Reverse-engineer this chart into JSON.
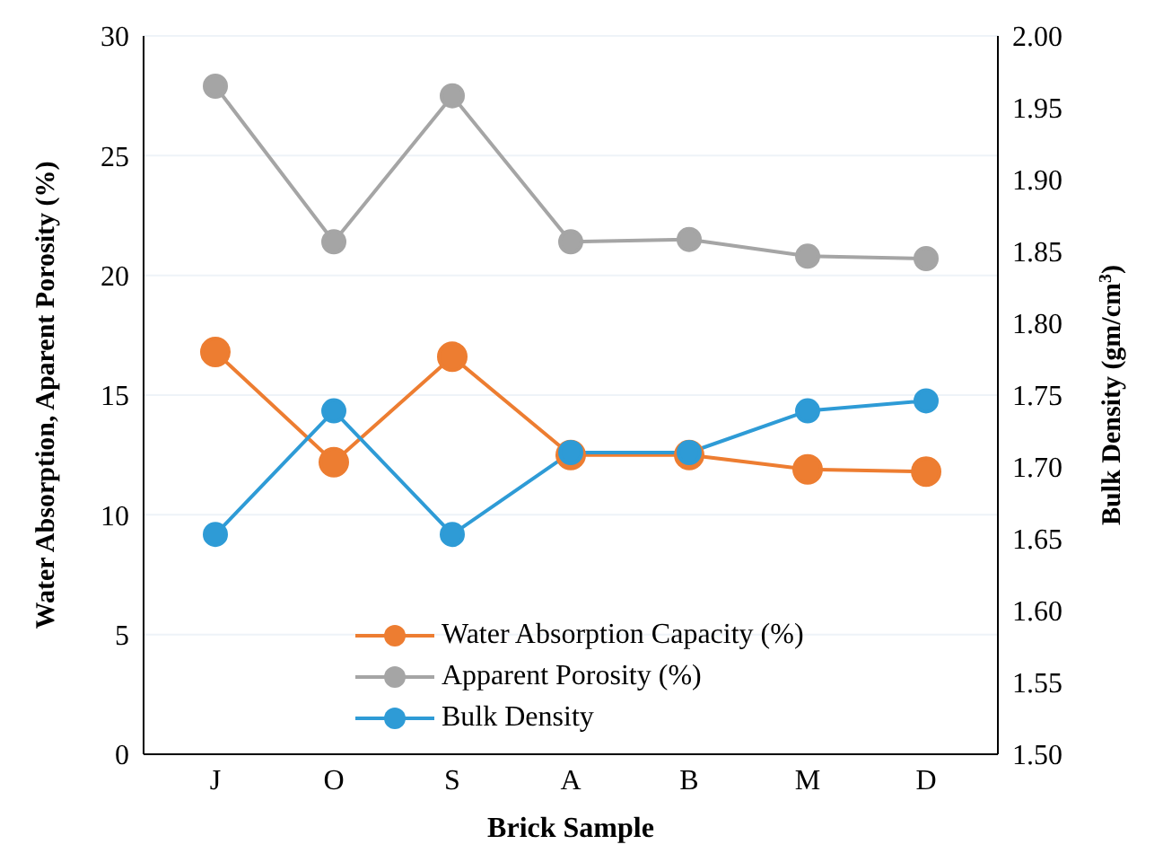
{
  "chart_data": {
    "type": "line",
    "xlabel": "Brick Sample",
    "ylabel": "Water Absorption, Aparent Porosity (%)",
    "y2label": "Bulk Density (gm/cm$^{3}$)",
    "categories": [
      "J",
      "O",
      "S",
      "A",
      "B",
      "M",
      "D"
    ],
    "series": [
      {
        "name": "Water Absorption Capacity (%)",
        "color": "#ed7d31",
        "values": [
          16.8,
          12.2,
          16.6,
          12.5,
          12.5,
          11.9,
          11.8
        ]
      },
      {
        "name": "Apparent Porosity (%)",
        "color": "#a5a5a5",
        "values": [
          27.9,
          21.4,
          27.5,
          21.4,
          21.5,
          20.8,
          20.7
        ]
      },
      {
        "name": "Bulk Density",
        "color": "#2e9bd6",
        "axis": "y2",
        "values": [
          1.653,
          1.739,
          1.653,
          1.71,
          1.71,
          1.739,
          1.746
        ]
      }
    ],
    "ylim": [
      0,
      30
    ],
    "yticks": [
      0,
      5,
      10,
      15,
      20,
      25,
      30
    ],
    "y2lim": [
      1.5,
      2.0
    ],
    "y2ticks": [
      {
        "value": 1.5,
        "label": "1.50"
      },
      {
        "value": 1.55,
        "label": "1.55"
      },
      {
        "value": 1.6,
        "label": "1.60"
      },
      {
        "value": 1.65,
        "label": "1.65"
      },
      {
        "value": 1.7,
        "label": "1.70"
      },
      {
        "value": 1.75,
        "label": "1.75"
      },
      {
        "value": 1.8,
        "label": "1.80"
      },
      {
        "value": 1.85,
        "label": "1.85"
      },
      {
        "value": 1.9,
        "label": "1.90"
      },
      {
        "value": 1.95,
        "label": "1.95"
      },
      {
        "value": 2.0,
        "label": "2.00"
      }
    ],
    "grid": "y",
    "legend": "bottom",
    "marker": "circle",
    "line_style": "solid"
  }
}
